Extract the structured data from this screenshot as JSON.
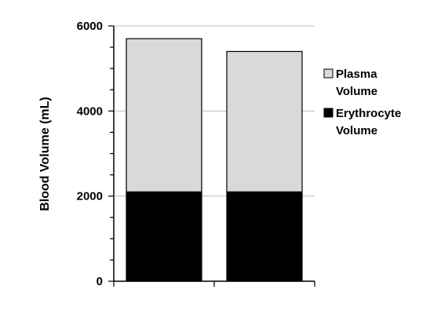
{
  "chart_data": {
    "type": "bar",
    "stacked": true,
    "categories": [
      "",
      ""
    ],
    "series": [
      {
        "name": "Erythrocyte Volume",
        "color": "#000000",
        "values": [
          2100,
          2100
        ]
      },
      {
        "name": "Plasma Volume",
        "color": "#d9d9d9",
        "values": [
          3600,
          3300
        ]
      }
    ],
    "legend_lines": [
      [
        "Plasma",
        "Volume"
      ],
      [
        "Erythrocyte",
        "Volume"
      ]
    ],
    "legend_position": "right",
    "title": "",
    "xlabel": "",
    "ylabel": "Blood Volume (mL)",
    "ylim": [
      0,
      6000
    ],
    "yticks": [
      "0",
      "2000",
      "4000",
      "6000"
    ],
    "ytick_values": [
      0,
      2000,
      4000,
      6000
    ],
    "grid": true
  }
}
